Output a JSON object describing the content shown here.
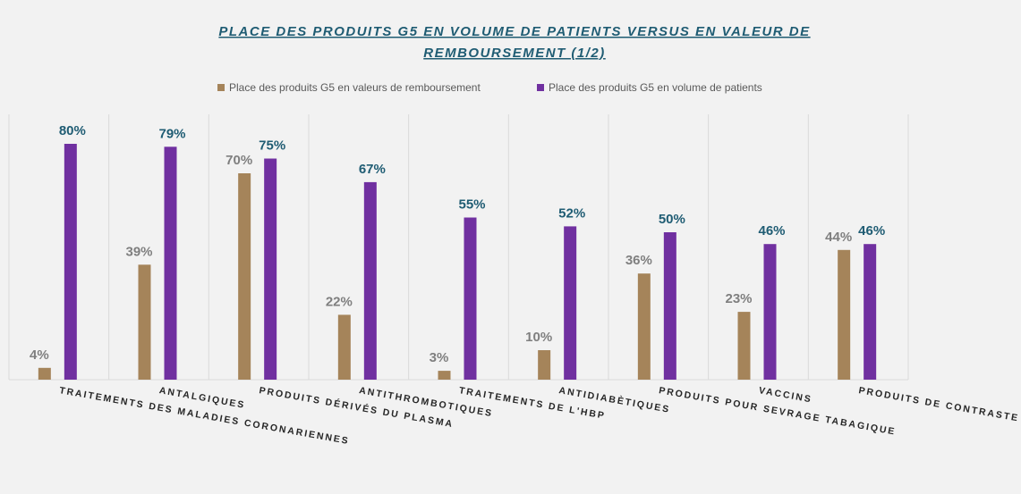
{
  "chart_data": {
    "type": "bar",
    "title": [
      "PLACE DES PRODUITS G5 EN VOLUME DE PATIENTS VERSUS EN VALEUR DE",
      "REMBOURSEMENT (1/2)"
    ],
    "categories": [
      "TRAITEMENTS DES MALADIES CORONARIENNES",
      "ANTALGIQUES",
      "PRODUITS DÉRIVÉS DU PLASMA",
      "ANTITHROMBOTIQUES",
      "TRAITEMENTS DE L'HBP",
      "ANTIDIABÈTIQUES",
      "PRODUITS POUR SEVRAGE TABAGIQUE",
      "VACCINS",
      "PRODUITS DE CONTRASTE"
    ],
    "series": [
      {
        "name": "Place des produits G5 en valeurs de remboursement",
        "color": "#a5845a",
        "values": [
          4,
          39,
          70,
          22,
          3,
          10,
          36,
          23,
          44
        ],
        "value_labels": [
          "4%",
          "39%",
          "70%",
          "22%",
          "3%",
          "10%",
          "36%",
          "23%",
          "44%"
        ]
      },
      {
        "name": "Place des produits G5 en volume de patients",
        "color": "#7030a0",
        "values": [
          80,
          79,
          75,
          67,
          55,
          52,
          50,
          46,
          46
        ],
        "value_labels": [
          "80%",
          "79%",
          "75%",
          "67%",
          "55%",
          "52%",
          "50%",
          "46%",
          "46%"
        ]
      }
    ],
    "ylim": [
      0,
      90
    ],
    "legend": "top"
  }
}
